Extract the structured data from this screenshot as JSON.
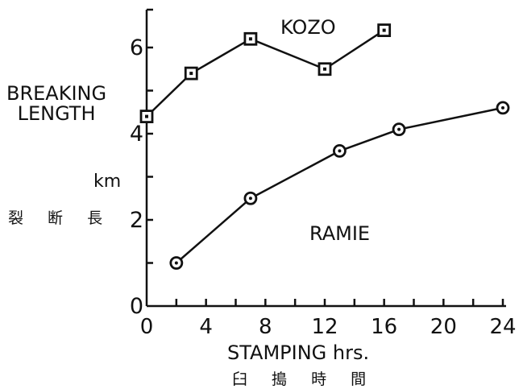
{
  "chart_data": {
    "type": "line",
    "xlabel": "STAMPING hrs.",
    "xlabel_jp": "臼 搗 時 間",
    "ylabel_line1": "BREAKING",
    "ylabel_line2": "LENGTH",
    "yunit": "km",
    "ylabel_jp": "裂 断 長",
    "xlim": [
      0,
      24
    ],
    "ylim": [
      0,
      6.8
    ],
    "xticks": [
      0,
      4,
      8,
      12,
      16,
      20,
      24
    ],
    "yticks": [
      0,
      2,
      4,
      6
    ],
    "grid": false,
    "series": [
      {
        "name": "KOZO",
        "marker": "square",
        "x": [
          0,
          3,
          7,
          12,
          16
        ],
        "y": [
          4.4,
          5.4,
          6.2,
          5.5,
          6.4
        ]
      },
      {
        "name": "RAMIE",
        "marker": "circle",
        "x": [
          2,
          7,
          13,
          17,
          24
        ],
        "y": [
          1.0,
          2.5,
          3.6,
          4.1,
          4.6
        ]
      }
    ]
  }
}
